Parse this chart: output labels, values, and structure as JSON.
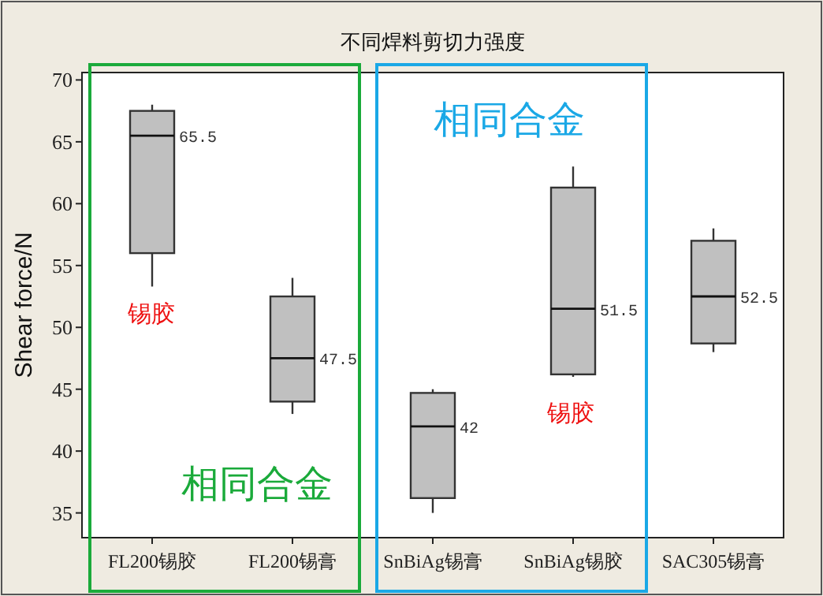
{
  "chart_data": {
    "type": "box",
    "title": "不同焊料剪切力强度",
    "ylabel": "Shear force/N",
    "categories": [
      "FL200锡胶",
      "FL200锡膏",
      "SnBiAg锡膏",
      "SnBiAg锡胶",
      "SAC305锡膏"
    ],
    "boxes": [
      {
        "low": 53.3,
        "q1": 56,
        "median": 65.5,
        "q3": 67.5,
        "high": 68
      },
      {
        "low": 43,
        "q1": 44,
        "median": 47.5,
        "q3": 52.5,
        "high": 54
      },
      {
        "low": 35,
        "q1": 36.2,
        "median": 42,
        "q3": 44.7,
        "high": 45
      },
      {
        "low": 46,
        "q1": 46.2,
        "median": 51.5,
        "q3": 61.3,
        "high": 63
      },
      {
        "low": 48,
        "q1": 48.7,
        "median": 52.5,
        "q3": 57,
        "high": 58
      }
    ],
    "ylim": [
      33,
      70.6
    ],
    "yticks": [
      35,
      40,
      45,
      50,
      55,
      60,
      65,
      70
    ],
    "annotations": [
      {
        "text": "65.5",
        "x": "FL200锡胶",
        "y": 65.5
      },
      {
        "text": "47.5",
        "x": "FL200锡膏",
        "y": 47.5
      },
      {
        "text": "42",
        "x": "SnBiAg锡膏",
        "y": 42
      },
      {
        "text": "51.5",
        "x": "SnBiAg锡胶",
        "y": 51.5
      },
      {
        "text": "52.5",
        "x": "SAC305锡膏",
        "y": 52.5
      },
      "锡胶",
      "锡胶",
      "相同合金",
      "相同合金"
    ]
  }
}
